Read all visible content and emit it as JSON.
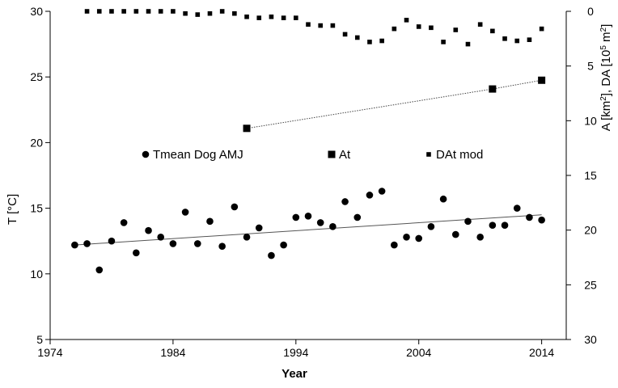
{
  "chart_data": {
    "type": "scatter",
    "xlabel": "Year",
    "ylabel_left": "T [°C]",
    "ylabel_right": "A [km²], DA [10⁵ m²]",
    "xlim": [
      1974,
      2016
    ],
    "ylim_left": [
      5,
      30
    ],
    "ylim_right": [
      0,
      30
    ],
    "right_axis_inverted": true,
    "x_ticks": [
      "1974",
      "1984",
      "1994",
      "2004",
      "2014"
    ],
    "y_left_ticks": [
      "5",
      "10",
      "15",
      "20",
      "25",
      "30"
    ],
    "y_right_ticks": [
      "0",
      "5",
      "10",
      "15",
      "20",
      "25",
      "30"
    ],
    "legend": [
      "Tmean Dog AMJ",
      "At",
      "DAt mod"
    ],
    "legend_position": "center",
    "series": [
      {
        "name": "Tmean Dog AMJ",
        "axis": "left",
        "marker": "circle",
        "x": [
          1976,
          1977,
          1978,
          1979,
          1980,
          1981,
          1982,
          1983,
          1984,
          1985,
          1986,
          1987,
          1988,
          1989,
          1990,
          1991,
          1992,
          1993,
          1994,
          1995,
          1996,
          1997,
          1998,
          1999,
          2000,
          2001,
          2002,
          2003,
          2004,
          2005,
          2006,
          2007,
          2008,
          2009,
          2010,
          2011,
          2012,
          2013,
          2014
        ],
        "y": [
          12.2,
          12.3,
          10.3,
          12.5,
          13.9,
          11.6,
          13.3,
          12.8,
          12.3,
          14.7,
          12.3,
          14.0,
          12.1,
          15.1,
          12.8,
          13.5,
          11.4,
          12.2,
          14.3,
          14.4,
          13.9,
          13.6,
          15.5,
          14.3,
          16.0,
          16.3,
          12.2,
          12.8,
          12.7,
          13.6,
          15.7,
          13.0,
          14.0,
          12.8,
          13.7,
          13.7,
          15.0,
          14.3,
          14.1
        ],
        "trendline": [
          [
            1976,
            12.2
          ],
          [
            2014,
            14.5
          ]
        ]
      },
      {
        "name": "At",
        "axis": "right",
        "marker": "square",
        "x": [
          1990,
          2010,
          2014
        ],
        "y": [
          10.7,
          7.1,
          6.3
        ],
        "line": "dotted"
      },
      {
        "name": "DAt mod",
        "axis": "right",
        "marker": "small-square",
        "x": [
          1977,
          1978,
          1979,
          1980,
          1981,
          1982,
          1983,
          1984,
          1985,
          1986,
          1987,
          1988,
          1989,
          1990,
          1991,
          1992,
          1993,
          1994,
          1995,
          1996,
          1997,
          1998,
          1999,
          2000,
          2001,
          2002,
          2003,
          2004,
          2005,
          2006,
          2007,
          2008,
          2009,
          2010,
          2011,
          2012,
          2013,
          2014
        ],
        "y": [
          0,
          0,
          0,
          0,
          0,
          0,
          0,
          0,
          0.2,
          0.3,
          0.2,
          0,
          0.2,
          0.5,
          0.6,
          0.5,
          0.6,
          0.6,
          1.2,
          1.3,
          1.3,
          2.1,
          2.4,
          2.8,
          2.7,
          1.6,
          0.8,
          1.4,
          1.5,
          2.8,
          1.7,
          3.0,
          1.2,
          1.8,
          2.5,
          2.7,
          2.6,
          1.6
        ]
      }
    ]
  }
}
